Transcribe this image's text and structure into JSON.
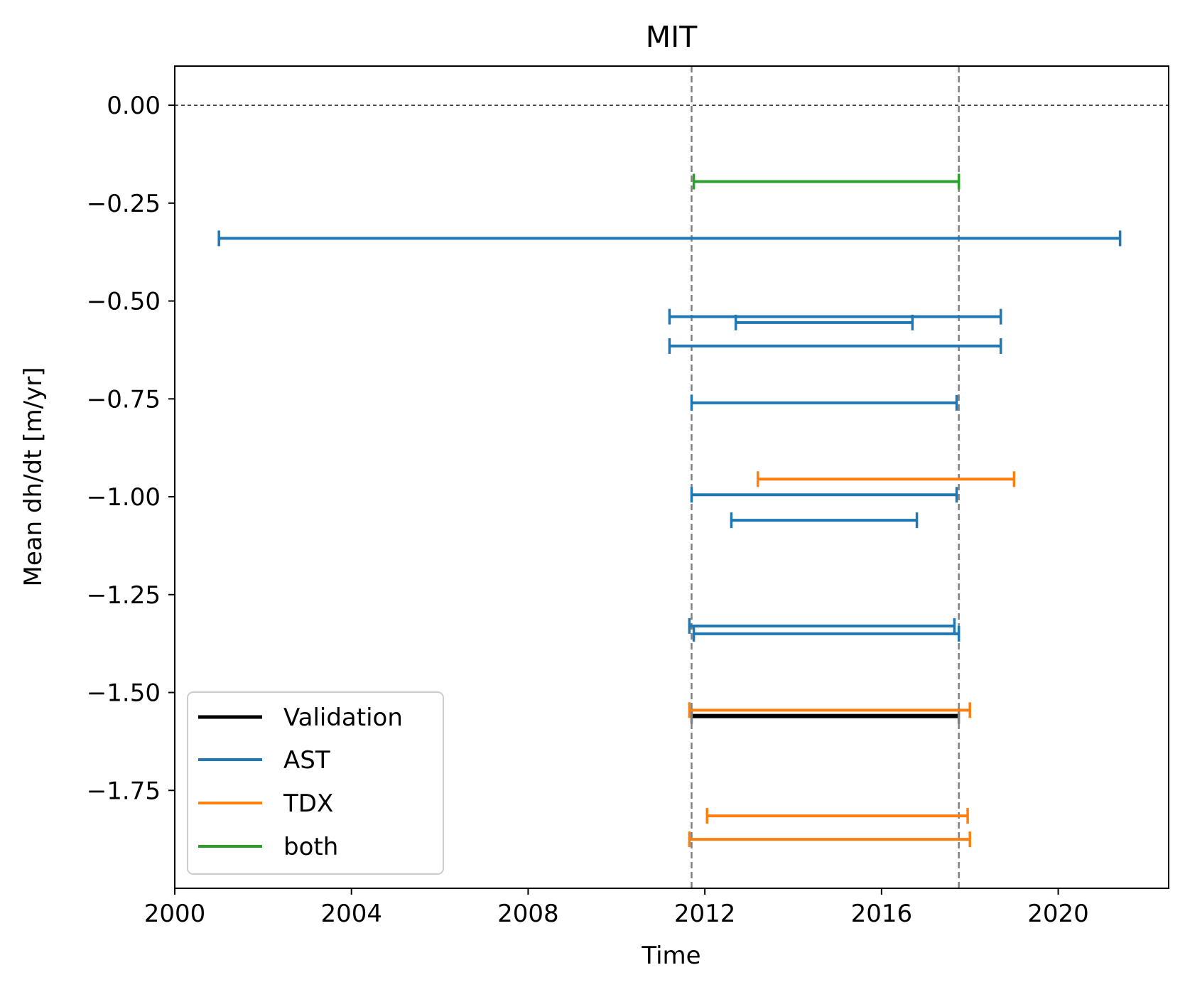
{
  "chart_data": {
    "type": "errorbar-intervals",
    "title": "MIT",
    "xlabel": "Time",
    "ylabel": "Mean dh/dt [m/yr]",
    "xlim": [
      2000,
      2022.5
    ],
    "ylim": [
      -2.0,
      0.1
    ],
    "xticks": [
      2000,
      2004,
      2008,
      2012,
      2016,
      2020
    ],
    "xtick_labels": [
      "2000",
      "2004",
      "2008",
      "2012",
      "2016",
      "2020"
    ],
    "yticks": [
      0.0,
      -0.25,
      -0.5,
      -0.75,
      -1.0,
      -1.25,
      -1.5,
      -1.75
    ],
    "ytick_labels": [
      "0.00",
      "−0.25",
      "−0.50",
      "−0.75",
      "−1.00",
      "−1.25",
      "−1.50",
      "−1.75"
    ],
    "grid": false,
    "reference_lines": {
      "horizontal_zero": 0.0,
      "vertical_dashed": [
        2011.7,
        2017.75
      ]
    },
    "legend": {
      "placement": "lower-left",
      "entries": [
        {
          "label": "Validation",
          "color": "#000000"
        },
        {
          "label": "AST",
          "color": "#1f77b4"
        },
        {
          "label": "TDX",
          "color": "#ff7f0e"
        },
        {
          "label": "both",
          "color": "#2ca02c"
        }
      ]
    },
    "series": [
      {
        "name": "Validation",
        "color": "#000000",
        "intervals": [
          {
            "start": 2011.7,
            "end": 2017.75,
            "value": -1.56
          }
        ]
      },
      {
        "name": "AST",
        "color": "#1f77b4",
        "intervals": [
          {
            "start": 2001.0,
            "end": 2021.4,
            "value": -0.34
          },
          {
            "start": 2011.2,
            "end": 2018.7,
            "value": -0.54
          },
          {
            "start": 2012.7,
            "end": 2016.7,
            "value": -0.555
          },
          {
            "start": 2011.2,
            "end": 2018.7,
            "value": -0.615
          },
          {
            "start": 2011.7,
            "end": 2017.7,
            "value": -0.76
          },
          {
            "start": 2011.7,
            "end": 2017.7,
            "value": -0.995
          },
          {
            "start": 2012.6,
            "end": 2016.8,
            "value": -1.06
          },
          {
            "start": 2011.65,
            "end": 2017.65,
            "value": -1.33
          },
          {
            "start": 2011.75,
            "end": 2017.75,
            "value": -1.35
          }
        ]
      },
      {
        "name": "TDX",
        "color": "#ff7f0e",
        "intervals": [
          {
            "start": 2013.2,
            "end": 2019.0,
            "value": -0.955
          },
          {
            "start": 2011.65,
            "end": 2018.0,
            "value": -1.545
          },
          {
            "start": 2012.05,
            "end": 2017.95,
            "value": -1.815
          },
          {
            "start": 2011.65,
            "end": 2018.0,
            "value": -1.875
          }
        ]
      },
      {
        "name": "both",
        "color": "#2ca02c",
        "intervals": [
          {
            "start": 2011.75,
            "end": 2017.75,
            "value": -0.195
          }
        ]
      }
    ]
  }
}
